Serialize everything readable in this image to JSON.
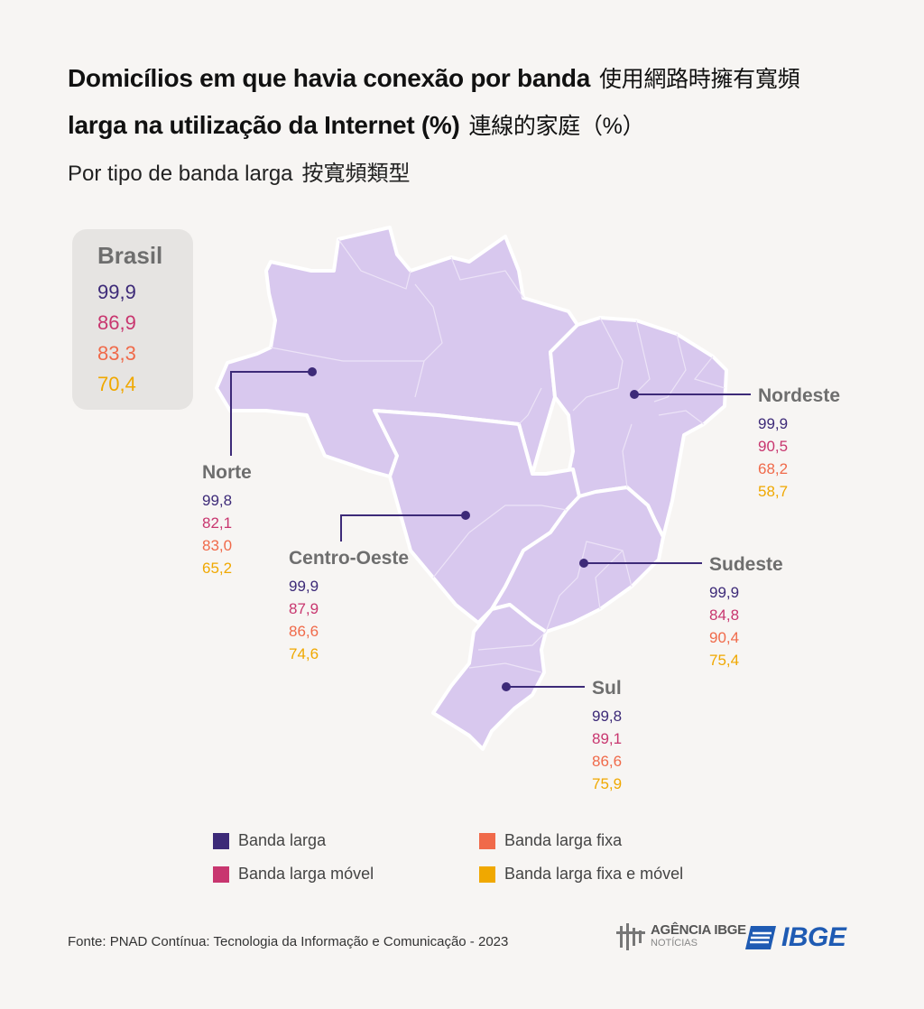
{
  "title": {
    "line1_pt": "Domicílios em que havia conexão por banda",
    "line1_zh": "使用網路時擁有寬頻",
    "line2_pt": "larga na utilização da Internet (%)",
    "line2_zh": "連線的家庭（%）"
  },
  "subtitle": {
    "pt": "Por tipo de banda larga",
    "zh": "按寬頻類型"
  },
  "colors": {
    "map_fill": "#d8c8ee",
    "map_border": "#ffffff",
    "leader": "#3d2a78",
    "banda_larga": "#3d2a78",
    "banda_larga_movel": "#c8366f",
    "banda_larga_fixa": "#f06a4a",
    "banda_larga_fixa_movel": "#f0a800"
  },
  "brasil": {
    "name": "Brasil",
    "values": [
      "99,9",
      "86,9",
      "83,3",
      "70,4"
    ]
  },
  "regions": {
    "norte": {
      "name": "Norte",
      "values": [
        "99,8",
        "82,1",
        "83,0",
        "65,2"
      ]
    },
    "nordeste": {
      "name": "Nordeste",
      "values": [
        "99,9",
        "90,5",
        "68,2",
        "58,7"
      ]
    },
    "centro_oeste": {
      "name": "Centro-Oeste",
      "values": [
        "99,9",
        "87,9",
        "86,6",
        "74,6"
      ]
    },
    "sudeste": {
      "name": "Sudeste",
      "values": [
        "99,9",
        "84,8",
        "90,4",
        "75,4"
      ]
    },
    "sul": {
      "name": "Sul",
      "values": [
        "99,8",
        "89,1",
        "86,6",
        "75,9"
      ]
    }
  },
  "legend": [
    {
      "label": "Banda larga",
      "color": "#3d2a78"
    },
    {
      "label": "Banda larga fixa",
      "color": "#f06a4a"
    },
    {
      "label": "Banda larga móvel",
      "color": "#c8366f"
    },
    {
      "label": "Banda larga fixa e móvel",
      "color": "#f0a800"
    }
  ],
  "source": "Fonte: PNAD Contínua: Tecnologia da Informação e Comunicação - 2023",
  "logos": {
    "agencia_main": "AGÊNCIA IBGE",
    "agencia_sub": "NOTÍCIAS",
    "ibge": "IBGE"
  }
}
